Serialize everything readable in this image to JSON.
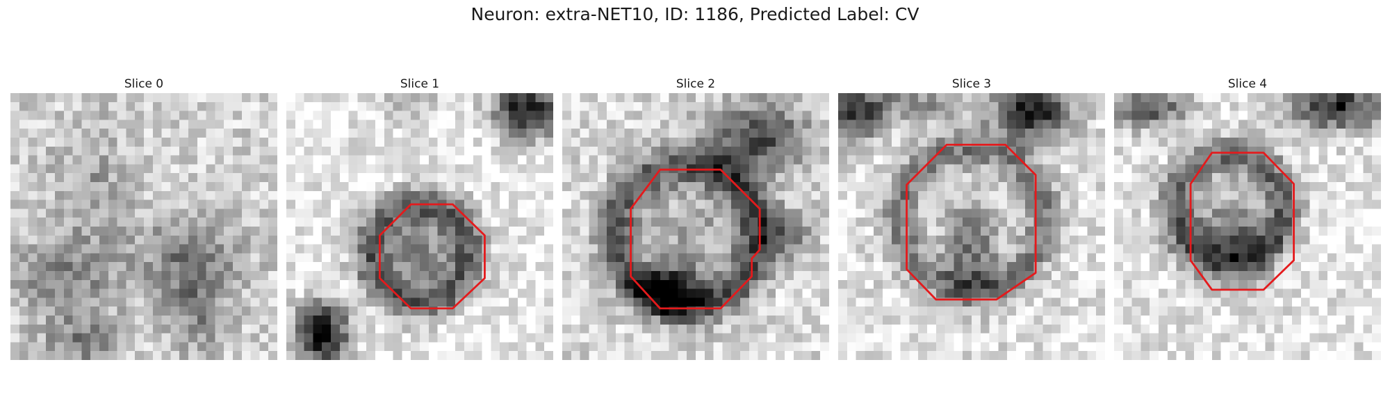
{
  "title": "Neuron: extra-NET10, ID: 1186, Predicted Label: CV",
  "colors": {
    "outline": "#e41a1c",
    "background": "#ffffff",
    "text": "#1a1a1a"
  },
  "panels": [
    {
      "label": "Slice 0",
      "outline": false,
      "image": "grayscale-noise-patch-dark-blobs-bottom"
    },
    {
      "label": "Slice 1",
      "outline": true,
      "image": "grayscale-patch-ring-cell-dark-corners"
    },
    {
      "label": "Slice 2",
      "outline": true,
      "image": "grayscale-patch-ring-cell-dark-top-right"
    },
    {
      "label": "Slice 3",
      "outline": true,
      "image": "grayscale-patch-ring-cell-dark-top"
    },
    {
      "label": "Slice 4",
      "outline": true,
      "image": "grayscale-patch-ring-cell-dark-top-edge"
    }
  ]
}
